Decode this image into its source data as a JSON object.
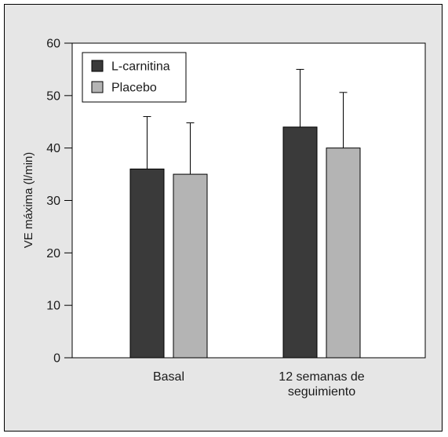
{
  "chart_data": {
    "type": "bar",
    "title": "",
    "xlabel": "",
    "ylabel": "VE máxima (l/min)",
    "ylim": [
      0,
      60
    ],
    "yticks": [
      0,
      10,
      20,
      30,
      40,
      50,
      60
    ],
    "categories": [
      [
        "Basal"
      ],
      [
        "12 semanas de",
        "seguimiento"
      ]
    ],
    "series": [
      {
        "name": "L-carnitina",
        "color": "#3a3a3a",
        "values": [
          36,
          44
        ],
        "error_upper": [
          46,
          55
        ]
      },
      {
        "name": "Placebo",
        "color": "#b4b4b4",
        "values": [
          35,
          40
        ],
        "error_upper": [
          44.8,
          50.6
        ]
      }
    ],
    "legend": "top-left",
    "grid": false
  }
}
